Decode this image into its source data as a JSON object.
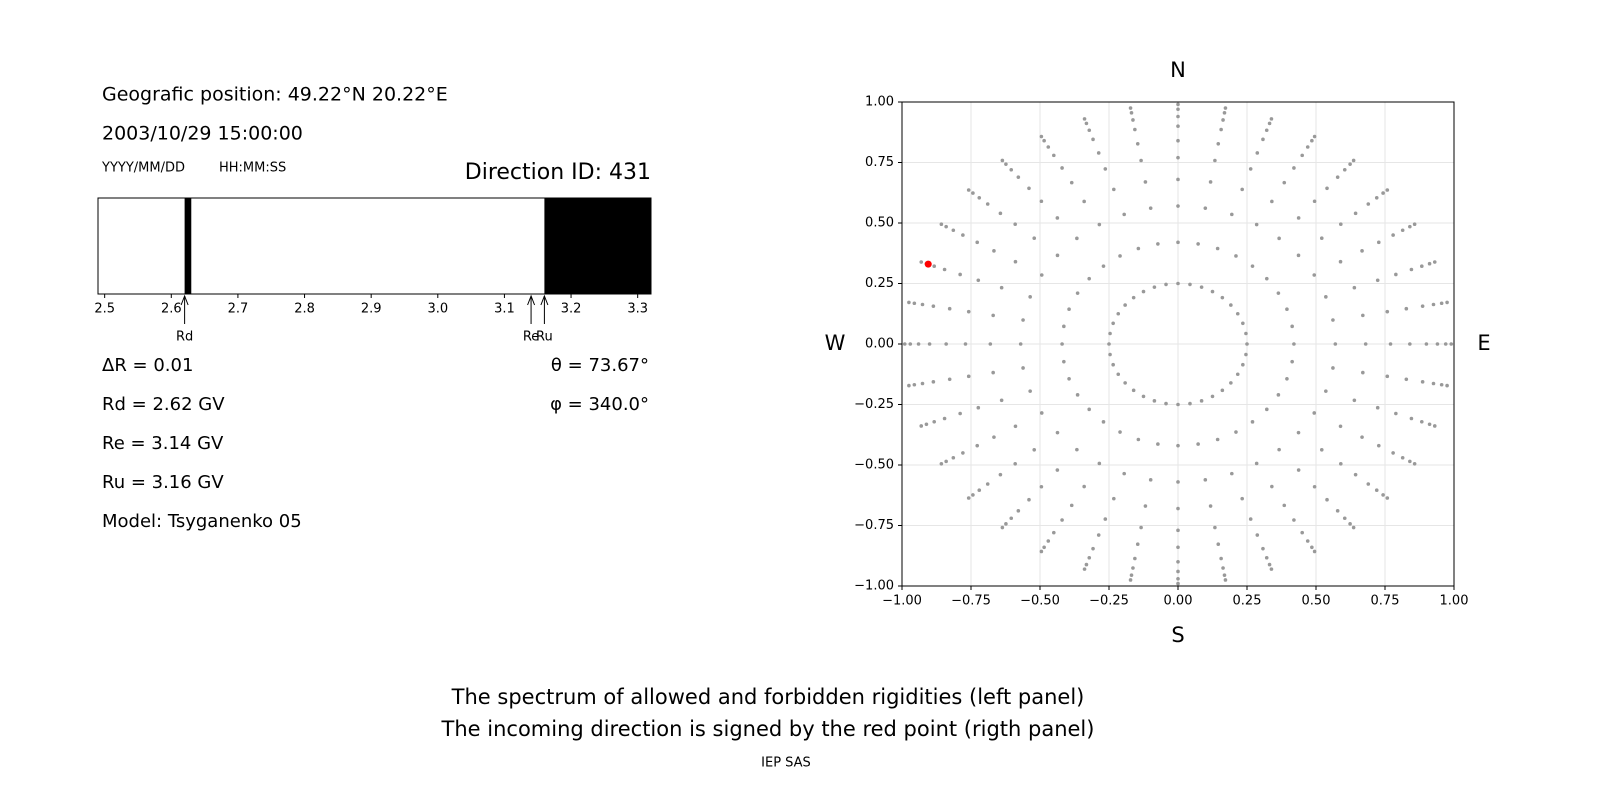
{
  "header": {
    "position": "Geografic position: 49.22°N 20.22°E",
    "datetime": "2003/10/29 15:00:00",
    "date_format": "YYYY/MM/DD",
    "time_format": "HH:MM:SS",
    "direction": "Direction ID: 431"
  },
  "info": [
    "ΔR = 0.01",
    "Rd = 2.62 GV",
    "Re = 3.14 GV",
    "Ru = 3.16 GV",
    "Model: Tsyganenko 05"
  ],
  "angles": [
    "θ = 73.67°",
    "φ = 340.0°"
  ],
  "chart_data": [
    {
      "type": "spectrum",
      "xlim": [
        2.49,
        3.32
      ],
      "xticks": [
        2.5,
        2.6,
        2.7,
        2.8,
        2.9,
        {
          "value": 3,
          "label": "3.0"
        },
        3.1,
        3.2,
        3.3
      ],
      "color": "#000000",
      "forbidden": [
        {
          "from": 2.62,
          "to": 2.63
        },
        {
          "from": 3.16,
          "to": 3.32
        }
      ],
      "markers": {
        "names": [
          "Rd",
          "Re",
          "Ru"
        ],
        "values": [
          2.62,
          3.14,
          3.16
        ]
      }
    },
    {
      "type": "scatter",
      "xlim": [
        -1,
        1
      ],
      "ylim": [
        -1,
        1
      ],
      "xticks": [
        {
          "value": -1,
          "label": "−1.00"
        },
        {
          "value": -0.75,
          "label": "−0.75"
        },
        {
          "value": -0.5,
          "label": "−0.50"
        },
        {
          "value": -0.25,
          "label": "−0.25"
        },
        {
          "value": 0,
          "label": "0.00"
        },
        {
          "value": 0.25,
          "label": "0.25"
        },
        {
          "value": 0.5,
          "label": "0.50"
        },
        {
          "value": 0.75,
          "label": "0.75"
        },
        {
          "value": 1,
          "label": "1.00"
        }
      ],
      "yticks": [
        {
          "value": -1,
          "label": "−1.00"
        },
        {
          "value": -0.75,
          "label": "−0.75"
        },
        {
          "value": -0.5,
          "label": "−0.50"
        },
        {
          "value": -0.25,
          "label": "−0.25"
        },
        {
          "value": 0,
          "label": "0.00"
        },
        {
          "value": 0.25,
          "label": "0.25"
        },
        {
          "value": 0.5,
          "label": "0.50"
        },
        {
          "value": 0.75,
          "label": "0.75"
        },
        {
          "value": 1,
          "label": "1.00"
        }
      ],
      "grid": true,
      "compass": {
        "top": "N",
        "bottom": "S",
        "left": "W",
        "right": "E"
      },
      "directions": {
        "color": "#999999",
        "azimuth": [
          0,
          10,
          20,
          30,
          40,
          50,
          60,
          70,
          80,
          90,
          100,
          110,
          120,
          130,
          140,
          150,
          160,
          170,
          180,
          190,
          200,
          210,
          220,
          230,
          240,
          250,
          260,
          270,
          280,
          290,
          300,
          310,
          320,
          330,
          340,
          350
        ],
        "radius": [
          0.25,
          0.42,
          0.57,
          0.68,
          0.77,
          0.84,
          0.9,
          0.94,
          0.97,
          0.99
        ]
      },
      "highlight": {
        "color": "#ff0000",
        "x": -0.905,
        "y": 0.33
      }
    }
  ],
  "caption": [
    "The spectrum of allowed and forbidden rigidities (left panel)",
    "The incoming direction is signed by the red point (rigth panel)"
  ],
  "footer": "IEP SAS"
}
